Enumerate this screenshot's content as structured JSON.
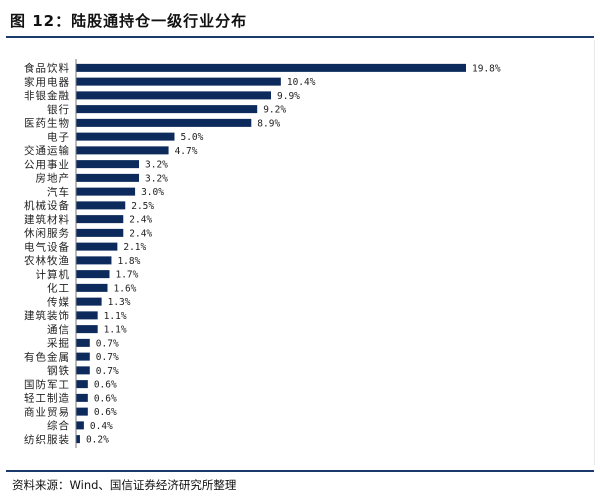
{
  "header": {
    "title": "图 12：陆股通持仓一级行业分布"
  },
  "footer": {
    "source": "资料来源：Wind、国信证券经济研究所整理"
  },
  "colors": {
    "bar": "#0d2a5c",
    "rule": "#1a3a6e"
  },
  "chart_data": {
    "type": "bar",
    "orientation": "horizontal",
    "categories": [
      "食品饮料",
      "家用电器",
      "非银金融",
      "银行",
      "医药生物",
      "电子",
      "交通运输",
      "公用事业",
      "房地产",
      "汽车",
      "机械设备",
      "建筑材料",
      "休闲服务",
      "电气设备",
      "农林牧渔",
      "计算机",
      "化工",
      "传媒",
      "建筑装饰",
      "通信",
      "采掘",
      "有色金属",
      "钢铁",
      "国防军工",
      "轻工制造",
      "商业贸易",
      "综合",
      "纺织服装"
    ],
    "values": [
      19.8,
      10.4,
      9.9,
      9.2,
      8.9,
      5.0,
      4.7,
      3.2,
      3.2,
      3.0,
      2.5,
      2.4,
      2.4,
      2.1,
      1.8,
      1.7,
      1.6,
      1.3,
      1.1,
      1.1,
      0.7,
      0.7,
      0.7,
      0.6,
      0.6,
      0.6,
      0.4,
      0.2
    ],
    "value_labels": [
      "19.8%",
      "10.4%",
      "9.9%",
      "9.2%",
      "8.9%",
      "5.0%",
      "4.7%",
      "3.2%",
      "3.2%",
      "3.0%",
      "2.5%",
      "2.4%",
      "2.4%",
      "2.1%",
      "1.8%",
      "1.7%",
      "1.6%",
      "1.3%",
      "1.1%",
      "1.1%",
      "0.7%",
      "0.7%",
      "0.7%",
      "0.6%",
      "0.6%",
      "0.6%",
      "0.4%",
      "0.2%"
    ],
    "unit": "%",
    "xlim": [
      0,
      20
    ],
    "grid": false,
    "legend": "none"
  }
}
